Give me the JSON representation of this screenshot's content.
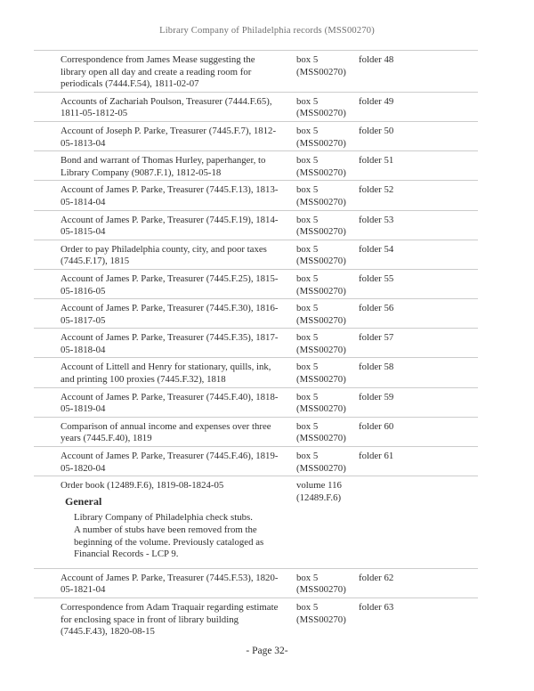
{
  "header": {
    "title": "Library Company of Philadelphia records (MSS00270)"
  },
  "table": {
    "rows": [
      {
        "description": "Correspondence from James Mease suggesting the library open all day and create a reading room for periodicals (7444.F.54), 1811-02-07",
        "container_line1": "box 5",
        "container_line2": "(MSS00270)",
        "folder": "folder 48"
      },
      {
        "description": "Accounts of Zachariah Poulson, Treasurer (7444.F.65), 1811-05-1812-05",
        "container_line1": "box 5",
        "container_line2": "(MSS00270)",
        "folder": "folder 49"
      },
      {
        "description": "Account of Joseph P. Parke, Treasurer (7445.F.7), 1812-05-1813-04",
        "container_line1": "box 5",
        "container_line2": "(MSS00270)",
        "folder": "folder 50"
      },
      {
        "description": "Bond and warrant of Thomas Hurley, paperhanger, to Library Company (9087.F.1), 1812-05-18",
        "container_line1": "box 5",
        "container_line2": "(MSS00270)",
        "folder": "folder 51"
      },
      {
        "description": "Account of James P. Parke, Treasurer (7445.F.13), 1813-05-1814-04",
        "container_line1": "box 5",
        "container_line2": "(MSS00270)",
        "folder": "folder 52"
      },
      {
        "description": "Account of James P. Parke, Treasurer (7445.F.19), 1814-05-1815-04",
        "container_line1": "box 5",
        "container_line2": "(MSS00270)",
        "folder": "folder 53"
      },
      {
        "description": "Order to pay Philadelphia county, city, and poor taxes (7445.F.17), 1815",
        "container_line1": "box 5",
        "container_line2": "(MSS00270)",
        "folder": "folder 54"
      },
      {
        "description": "Account of James P. Parke, Treasurer (7445.F.25), 1815-05-1816-05",
        "container_line1": "box 5",
        "container_line2": "(MSS00270)",
        "folder": "folder 55"
      },
      {
        "description": "Account of James P. Parke, Treasurer (7445.F.30), 1816-05-1817-05",
        "container_line1": "box 5",
        "container_line2": "(MSS00270)",
        "folder": "folder 56"
      },
      {
        "description": "Account of James P. Parke, Treasurer (7445.F.35), 1817-05-1818-04",
        "container_line1": "box 5",
        "container_line2": "(MSS00270)",
        "folder": "folder 57"
      },
      {
        "description": "Account of Littell and Henry for stationary, quills, ink, and printing 100 proxies (7445.F.32), 1818",
        "container_line1": "box 5",
        "container_line2": "(MSS00270)",
        "folder": "folder 58"
      },
      {
        "description": "Account of James P. Parke, Treasurer (7445.F.40), 1818-05-1819-04",
        "container_line1": "box 5",
        "container_line2": "(MSS00270)",
        "folder": "folder 59"
      },
      {
        "description": "Comparison of annual income and expenses over three years (7445.F.40), 1819",
        "container_line1": "box 5",
        "container_line2": "(MSS00270)",
        "folder": "folder 60"
      },
      {
        "description": "Account of James P. Parke, Treasurer (7445.F.46), 1819-05-1820-04",
        "container_line1": "box 5",
        "container_line2": "(MSS00270)",
        "folder": "folder 61"
      },
      {
        "description": "Order book (12489.F.6), 1819-08-1824-05",
        "container_line1": "volume 116",
        "container_line2": "(12489.F.6)",
        "folder": "",
        "note": {
          "heading": "General",
          "lines": [
            "Library Company of Philadelphia check stubs.",
            "A number of stubs have been removed from the beginning of the volume. Previously cataloged as Financial Records - LCP 9."
          ]
        }
      },
      {
        "description": "Account of James P. Parke, Treasurer (7445.F.53), 1820-05-1821-04",
        "container_line1": "box 5",
        "container_line2": "(MSS00270)",
        "folder": "folder 62"
      },
      {
        "description": "Correspondence from Adam Traquair regarding estimate for enclosing space in front of library building (7445.F.43), 1820-08-15",
        "container_line1": "box 5",
        "container_line2": "(MSS00270)",
        "folder": "folder 63"
      }
    ]
  },
  "footer": {
    "page_label": "- Page 32-"
  }
}
